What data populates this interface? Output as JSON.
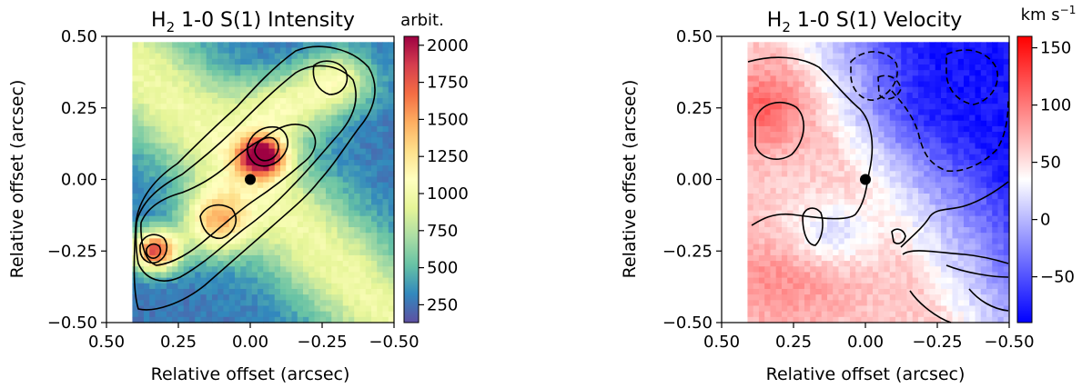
{
  "chart_data": [
    {
      "type": "heatmap",
      "title_main": "H",
      "title_sub": "2",
      "title_rest": " 1-0 S(1) Intensity",
      "xlabel": "Relative offset (arcsec)",
      "ylabel": "Relative offset (arcsec)",
      "xlim": [
        0.5,
        -0.5
      ],
      "ylim": [
        -0.5,
        0.5
      ],
      "x_ticks": [
        "0.50",
        "0.25",
        "0.00",
        "−0.25",
        "−0.50"
      ],
      "y_ticks": [
        "−0.50",
        "−0.25",
        "0.00",
        "0.25",
        "0.50"
      ],
      "data_extent": {
        "x": [
          0.41,
          -0.5
        ],
        "y": [
          -0.5,
          0.48
        ]
      },
      "colormap": "Spectral_r",
      "colorbar": {
        "label": "arbit.",
        "range": [
          130,
          2060
        ],
        "ticks": [
          "2000",
          "1750",
          "1500",
          "1250",
          "1000",
          "750",
          "500",
          "250"
        ],
        "tick_values": [
          2000,
          1750,
          1500,
          1250,
          1000,
          750,
          500,
          250
        ]
      },
      "background_level": 500,
      "emission_sources": [
        {
          "x": -0.04,
          "y": 0.08,
          "peak": 1500,
          "sx": 0.06,
          "sy": 0.05
        },
        {
          "x": 0.33,
          "y": -0.25,
          "peak": 1500,
          "sx": 0.06,
          "sy": 0.05
        },
        {
          "x": 0.12,
          "y": -0.15,
          "peak": 950,
          "sx": 0.08,
          "sy": 0.08
        },
        {
          "x": -0.3,
          "y": 0.35,
          "peak": 700,
          "sx": 0.09,
          "sy": 0.07
        },
        {
          "x": -0.12,
          "y": 0.25,
          "peak": 650,
          "sx": 0.12,
          "sy": 0.08
        }
      ],
      "marker": {
        "label": "star",
        "x": 0.0,
        "y": 0.0
      }
    },
    {
      "type": "heatmap",
      "title_main": "H",
      "title_sub": "2",
      "title_rest": "  1-0 S(1) Velocity",
      "xlabel": "Relative offset (arcsec)",
      "ylabel": "Relative offset (arcsec)",
      "xlim": [
        0.5,
        -0.5
      ],
      "ylim": [
        -0.5,
        0.5
      ],
      "x_ticks": [
        "0.50",
        "0.25",
        "0.00",
        "−0.25",
        "−0.50"
      ],
      "y_ticks": [
        "−0.50",
        "−0.25",
        "0.00",
        "0.25",
        "0.50"
      ],
      "data_extent": {
        "x": [
          0.41,
          -0.5
        ],
        "y": [
          -0.5,
          0.48
        ]
      },
      "colormap": "bwr",
      "colorbar": {
        "label_main": "km s",
        "label_sup": "−1",
        "range": [
          -90,
          160
        ],
        "ticks": [
          "150",
          "100",
          "50",
          "0",
          "−50"
        ],
        "tick_values": [
          150,
          100,
          50,
          0,
          -50
        ]
      },
      "velocity_regions": [
        {
          "x": -0.3,
          "y": 0.3,
          "value": -80,
          "sx": 0.16,
          "sy": 0.14
        },
        {
          "x": 0.35,
          "y": 0.25,
          "value": 110,
          "sx": 0.1,
          "sy": 0.1
        },
        {
          "x": 0.3,
          "y": -0.35,
          "value": 90,
          "sx": 0.18,
          "sy": 0.12
        },
        {
          "x": 0.1,
          "y": -0.18,
          "value": 20,
          "sx": 0.12,
          "sy": 0.08
        }
      ],
      "marker": {
        "label": "star",
        "x": 0.0,
        "y": 0.0
      }
    }
  ]
}
